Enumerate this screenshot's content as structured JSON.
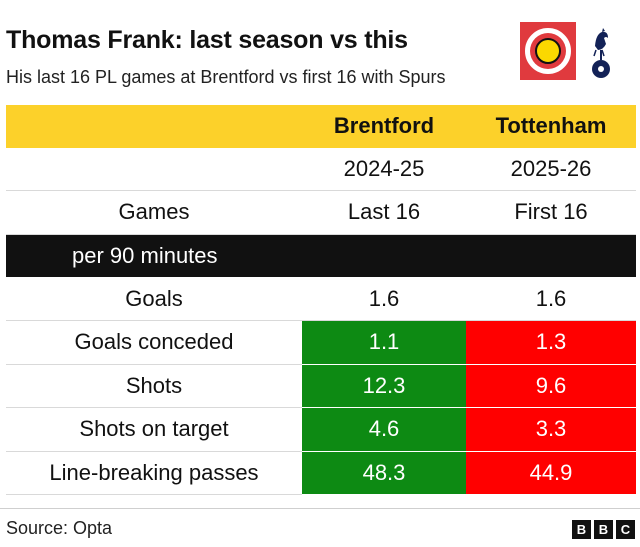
{
  "header": {
    "title": "Thomas Frank: last season vs this",
    "subtitle": "His last 16 PL games at Brentford vs first 16 with Spurs"
  },
  "logos": {
    "left": "brentford-crest-icon",
    "right": "tottenham-cockerel-icon"
  },
  "chart_data": {
    "type": "table",
    "columns": [
      "Brentford",
      "Tottenham"
    ],
    "seasons": [
      "2024-25",
      "2025-26"
    ],
    "games_label": "Games",
    "games": [
      "Last 16",
      "First 16"
    ],
    "section_label": "per 90 minutes",
    "rows": [
      {
        "label": "Goals",
        "values": [
          "1.6",
          "1.6"
        ],
        "highlight": [
          "none",
          "none"
        ]
      },
      {
        "label": "Goals conceded",
        "values": [
          "1.1",
          "1.3"
        ],
        "highlight": [
          "good",
          "bad"
        ]
      },
      {
        "label": "Shots",
        "values": [
          "12.3",
          "9.6"
        ],
        "highlight": [
          "good",
          "bad"
        ]
      },
      {
        "label": "Shots on target",
        "values": [
          "4.6",
          "3.3"
        ],
        "highlight": [
          "good",
          "bad"
        ]
      },
      {
        "label": "Line-breaking passes",
        "values": [
          "48.3",
          "44.9"
        ],
        "highlight": [
          "good",
          "bad"
        ]
      }
    ]
  },
  "colors": {
    "header_band": "#fcd12a",
    "section_band": "#111111",
    "better": "#0d8a13",
    "worse": "#ff0000"
  },
  "footer": {
    "source": "Source: Opta",
    "brand": [
      "B",
      "B",
      "C"
    ]
  }
}
